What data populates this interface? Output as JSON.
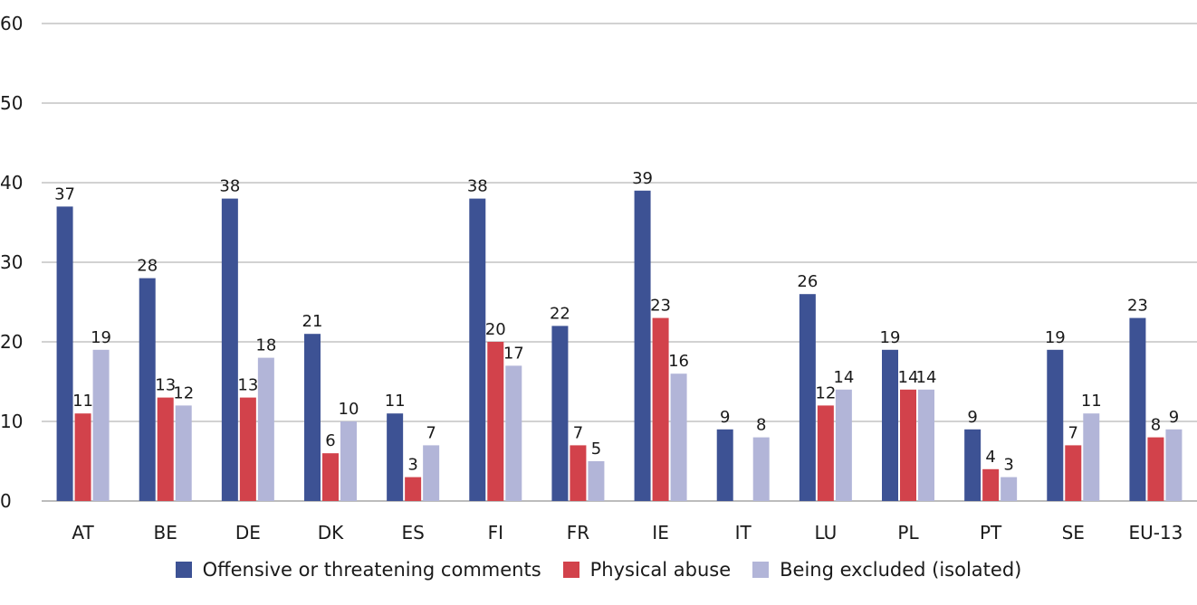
{
  "chart_data": {
    "type": "bar",
    "title": "",
    "xlabel": "",
    "ylabel": "",
    "ylim": [
      0,
      60
    ],
    "yticks": [
      0,
      10,
      20,
      30,
      40,
      50,
      60
    ],
    "grid": true,
    "legend_position": "bottom",
    "categories": [
      "AT",
      "BE",
      "DE",
      "DK",
      "ES",
      "FI",
      "FR",
      "IE",
      "IT",
      "LU",
      "PL",
      "PT",
      "SE",
      "EU-13"
    ],
    "series": [
      {
        "name": "Offensive or threatening comments",
        "color": "#3d5294",
        "values": [
          37,
          28,
          38,
          21,
          11,
          38,
          22,
          39,
          9,
          26,
          19,
          9,
          19,
          23
        ],
        "labels": [
          "37",
          "28",
          "38",
          "21",
          "11",
          "38",
          "22",
          "39",
          "9",
          "26",
          "19",
          "9",
          "19",
          "23"
        ]
      },
      {
        "name": "Physical abuse",
        "color": "#d2424b",
        "values": [
          11,
          13,
          13,
          6,
          3,
          20,
          7,
          23,
          null,
          12,
          14,
          4,
          7,
          8
        ],
        "labels": [
          "11",
          "13",
          "13",
          "6",
          "3",
          "20",
          "7",
          "23",
          "",
          "12",
          "14",
          "4",
          "7",
          "8"
        ]
      },
      {
        "name": "Being excluded (isolated)",
        "color": "#b2b5d8",
        "values": [
          19,
          12,
          18,
          10,
          7,
          17,
          5,
          16,
          8,
          14,
          14,
          3,
          11,
          9
        ],
        "labels": [
          "19",
          "12",
          "18",
          "10",
          "7",
          "17",
          "5",
          "16",
          "8",
          "14",
          "14",
          "3",
          "11",
          "9"
        ]
      }
    ]
  }
}
